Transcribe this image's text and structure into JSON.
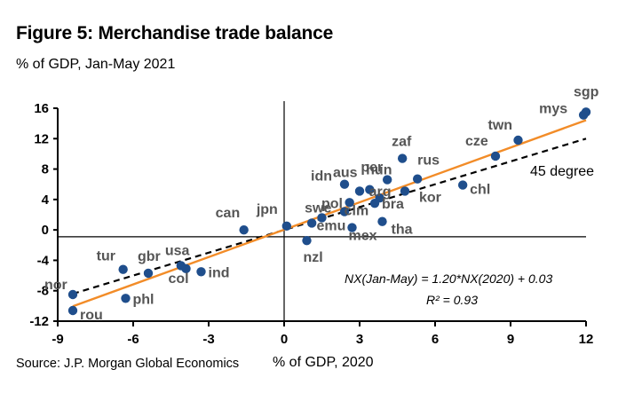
{
  "title": "Figure 5: Merchandise trade balance",
  "subtitle": "% of GDP, Jan-May 2021",
  "source": "Source: J.P. Morgan Global Economics",
  "colors": {
    "points": "#1f4e8c",
    "fit": "#f28c28",
    "reference": "#000000"
  },
  "chart_data": {
    "type": "scatter",
    "xlabel": "% of GDP, 2020",
    "ylabel": "",
    "xlim": [
      -9,
      12
    ],
    "ylim": [
      -12,
      16
    ],
    "xticks": [
      -9,
      -6,
      -3,
      0,
      3,
      6,
      9,
      12
    ],
    "yticks": [
      -12,
      -8,
      -4,
      0,
      4,
      8,
      12,
      16
    ],
    "xtick_labels": [
      "-9",
      "-6",
      "-3",
      "0",
      "3",
      "6",
      "9",
      "12"
    ],
    "ytick_labels": [
      "-12",
      "-8",
      "-4",
      "0",
      "4",
      "8",
      "12",
      "16"
    ],
    "grid": false,
    "points": [
      {
        "label": "sgp",
        "x": 12.0,
        "y": 15.5
      },
      {
        "label": "mys",
        "x": 11.9,
        "y": 15.1
      },
      {
        "label": "twn",
        "x": 9.3,
        "y": 11.8
      },
      {
        "label": "cze",
        "x": 8.4,
        "y": 9.7
      },
      {
        "label": "chl",
        "x": 7.1,
        "y": 5.9
      },
      {
        "label": "zaf",
        "x": 4.7,
        "y": 9.4
      },
      {
        "label": "rus",
        "x": 5.3,
        "y": 6.7
      },
      {
        "label": "hun",
        "x": 4.1,
        "y": 6.6
      },
      {
        "label": "kor",
        "x": 4.8,
        "y": 5.1
      },
      {
        "label": "per",
        "x": 3.4,
        "y": 5.3
      },
      {
        "label": "aus",
        "x": 3.0,
        "y": 5.1
      },
      {
        "label": "idn",
        "x": 2.4,
        "y": 6.0
      },
      {
        "label": "arg",
        "x": 3.8,
        "y": 4.2
      },
      {
        "label": "bra",
        "x": 3.6,
        "y": 3.5
      },
      {
        "label": "clm",
        "x": 2.6,
        "y": 3.6
      },
      {
        "label": "pol",
        "x": 2.4,
        "y": 2.4
      },
      {
        "label": "tha",
        "x": 3.9,
        "y": 1.1
      },
      {
        "label": "emu",
        "x": 1.5,
        "y": 1.6
      },
      {
        "label": "swe",
        "x": 1.1,
        "y": 0.9
      },
      {
        "label": "mex",
        "x": 2.7,
        "y": 0.3
      },
      {
        "label": "nzl",
        "x": 0.9,
        "y": -1.4
      },
      {
        "label": "jpn",
        "x": 0.1,
        "y": 0.5
      },
      {
        "label": "can",
        "x": -1.6,
        "y": 0.0
      },
      {
        "label": "usa",
        "x": -4.1,
        "y": -4.7
      },
      {
        "label": "col",
        "x": -3.9,
        "y": -5.1
      },
      {
        "label": "ind",
        "x": -3.3,
        "y": -5.5
      },
      {
        "label": "gbr",
        "x": -5.4,
        "y": -5.7
      },
      {
        "label": "tur",
        "x": -6.4,
        "y": -5.2
      },
      {
        "label": "phl",
        "x": -6.3,
        "y": -9.0
      },
      {
        "label": "nor",
        "x": -8.4,
        "y": -8.5
      },
      {
        "label": "rou",
        "x": -8.4,
        "y": -10.6
      }
    ],
    "fit_line": {
      "slope": 1.2,
      "intercept": 0.03,
      "x_range": [
        -8.4,
        12.0
      ]
    },
    "reference_line": {
      "label": "45 degree",
      "slope": 1,
      "intercept": 0,
      "x_range": [
        -8.4,
        12.0
      ]
    },
    "annotations": {
      "equation": "NX(Jan-May) = 1.20*NX(2020) + 0.03",
      "r_squared": "R² = 0.93"
    }
  }
}
